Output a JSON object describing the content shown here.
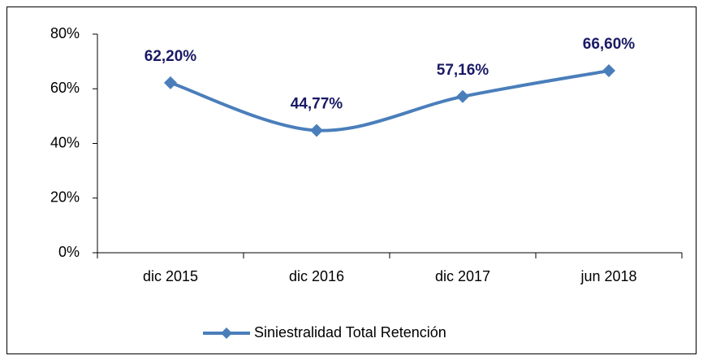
{
  "chart_data": {
    "type": "line",
    "categories": [
      "dic 2015",
      "dic 2016",
      "dic 2017",
      "jun 2018"
    ],
    "series": [
      {
        "name": "Siniestralidad Total Retención",
        "color": "#4a7ebb",
        "values": [
          62.2,
          44.77,
          57.16,
          66.6
        ],
        "value_labels": [
          "62,20%",
          "44,77%",
          "57,16%",
          "66,60%"
        ]
      }
    ],
    "ylim": [
      0,
      80
    ],
    "yticks": [
      {
        "value": 0,
        "label": "0%"
      },
      {
        "value": 20,
        "label": "20%"
      },
      {
        "value": 40,
        "label": "40%"
      },
      {
        "value": 60,
        "label": "60%"
      },
      {
        "value": 80,
        "label": "80%"
      }
    ],
    "legend": "bottom"
  }
}
